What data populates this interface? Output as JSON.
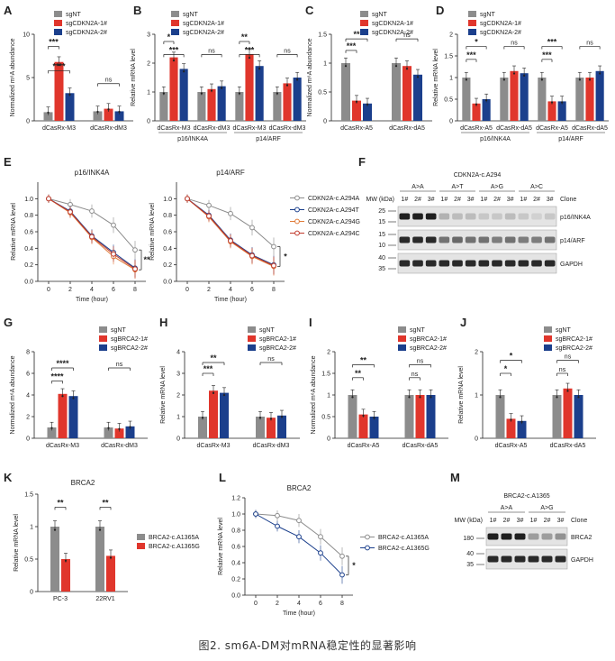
{
  "caption": "图2. sm6A-DM对mRNA稳定性的显著影响",
  "colors": {
    "sgNT": "#8c8c8c",
    "sg1": "#e0362c",
    "sg2": "#1b3f8c",
    "A": "#8c8c8c",
    "T": "#1b3f8c",
    "G": "#e07b39",
    "C": "#c0392b"
  },
  "legends": {
    "cdkn2a": [
      "sgNT",
      "sgCDKN2A-1#",
      "sgCDKN2A-2#"
    ],
    "brca2": [
      "sgNT",
      "sgBRCA2-1#",
      "sgBRCA2-2#"
    ],
    "cdkn2a_variants": [
      "CDKN2A-c.A294A",
      "CDKN2A-c.A294T",
      "CDKN2A-c.A294G",
      "CDKN2A-c.A294C"
    ],
    "brca2_variants_bar": [
      "BRCA2-c.A1365A",
      "BRCA2-c.A1365G"
    ],
    "brca2_variants_line": [
      "BRCA2-c.A1365A",
      "BRCA2-c.A1365G"
    ]
  },
  "chart_data": [
    {
      "panel": "A",
      "type": "bar",
      "title": "",
      "ylabel": "Normalized m⁶A abundance",
      "ylim": [
        0,
        10
      ],
      "yticks": [
        0,
        5,
        10
      ],
      "legend": "cdkn2a",
      "groups": [
        {
          "label": "dCasRx-M3",
          "values": [
            1,
            6.8,
            3.2
          ]
        },
        {
          "label": "dCasRx-dM3",
          "values": [
            1.1,
            1.4,
            1.1
          ]
        }
      ],
      "sig": [
        {
          "g": 0,
          "from": 0,
          "to": 1,
          "text": "***",
          "y": 8.6
        },
        {
          "g": 0,
          "from": 0,
          "to": 2,
          "text": "****",
          "y": 5.8
        },
        {
          "g": 1,
          "from": 0,
          "to": 2,
          "text": "ns",
          "y": 4.3
        }
      ]
    },
    {
      "panel": "B",
      "type": "bar",
      "title": "",
      "ylabel": "Relative mRNA level",
      "ylim": [
        0,
        3
      ],
      "yticks": [
        0,
        1,
        2,
        3
      ],
      "legend": "cdkn2a",
      "groups": [
        {
          "label": "dCasRx-M3",
          "values": [
            1,
            2.2,
            1.8
          ]
        },
        {
          "label": "dCasRx-dM3",
          "values": [
            1,
            1.1,
            1.2
          ]
        },
        {
          "label": "dCasRx-M3",
          "values": [
            1,
            2.3,
            1.9
          ]
        },
        {
          "label": "dCasRx-dM3",
          "values": [
            1,
            1.3,
            1.5
          ]
        }
      ],
      "sig": [
        {
          "g": 0,
          "from": 0,
          "to": 1,
          "text": "*",
          "y": 2.75
        },
        {
          "g": 0,
          "from": 0,
          "to": 2,
          "text": "***",
          "y": 2.3
        },
        {
          "g": 1,
          "from": 0,
          "to": 2,
          "text": "ns",
          "y": 2.3
        },
        {
          "g": 2,
          "from": 0,
          "to": 1,
          "text": "**",
          "y": 2.75
        },
        {
          "g": 2,
          "from": 0,
          "to": 2,
          "text": "***",
          "y": 2.3
        },
        {
          "g": 3,
          "from": 0,
          "to": 2,
          "text": "ns",
          "y": 2.3
        }
      ],
      "sublabels": [
        {
          "text": "p16/INK4A",
          "span": [
            0,
            1
          ]
        },
        {
          "text": "p14/ARF",
          "span": [
            2,
            3
          ]
        }
      ]
    },
    {
      "panel": "C",
      "type": "bar",
      "title": "",
      "ylabel": "Normalized m⁶A abundance",
      "ylim": [
        0,
        1.5
      ],
      "yticks": [
        0,
        0.5,
        1,
        1.5
      ],
      "legend": "cdkn2a",
      "groups": [
        {
          "label": "dCasRx-A5",
          "values": [
            1,
            0.35,
            0.3
          ]
        },
        {
          "label": "dCasRx-dA5",
          "values": [
            1,
            0.95,
            0.8
          ]
        }
      ],
      "sig": [
        {
          "g": 0,
          "from": 0,
          "to": 1,
          "text": "***",
          "y": 1.22
        },
        {
          "g": 0,
          "from": 0,
          "to": 2,
          "text": "**",
          "y": 1.42
        },
        {
          "g": 1,
          "from": 0,
          "to": 2,
          "text": "ns",
          "y": 1.42
        }
      ]
    },
    {
      "panel": "D",
      "type": "bar",
      "title": "",
      "ylabel": "Relative mRNA level",
      "ylim": [
        0,
        2
      ],
      "yticks": [
        0,
        0.5,
        1,
        1.5,
        2
      ],
      "legend": "cdkn2a",
      "groups": [
        {
          "label": "dCasRx-A5",
          "values": [
            1,
            0.4,
            0.5
          ]
        },
        {
          "label": "dCasRx-dA5",
          "values": [
            1,
            1.15,
            1.1
          ]
        },
        {
          "label": "dCasRx-A5",
          "values": [
            1,
            0.45,
            0.45
          ]
        },
        {
          "label": "dCasRx-dA5",
          "values": [
            1,
            1.0,
            1.15
          ]
        }
      ],
      "sig": [
        {
          "g": 0,
          "from": 0,
          "to": 1,
          "text": "***",
          "y": 1.42
        },
        {
          "g": 0,
          "from": 0,
          "to": 2,
          "text": "*",
          "y": 1.72
        },
        {
          "g": 1,
          "from": 0,
          "to": 2,
          "text": "ns",
          "y": 1.72
        },
        {
          "g": 2,
          "from": 0,
          "to": 1,
          "text": "***",
          "y": 1.42
        },
        {
          "g": 2,
          "from": 0,
          "to": 2,
          "text": "***",
          "y": 1.72
        },
        {
          "g": 3,
          "from": 0,
          "to": 2,
          "text": "ns",
          "y": 1.72
        }
      ],
      "sublabels": [
        {
          "text": "p16/INK4A",
          "span": [
            0,
            1
          ]
        },
        {
          "text": "p14/ARF",
          "span": [
            2,
            3
          ]
        }
      ]
    },
    {
      "panel": "E1",
      "type": "line",
      "title": "p16/INK4A",
      "xlabel": "Time (hour)",
      "ylabel": "Relative mRNA level",
      "x": [
        0,
        2,
        4,
        6,
        8
      ],
      "xlim": [
        -1,
        9
      ],
      "ylim": [
        0,
        1.2
      ],
      "yticks": [
        0,
        0.2,
        0.4,
        0.6,
        0.8,
        1.0
      ],
      "series": [
        {
          "name": "CDKN2A-c.A294A",
          "values": [
            1.0,
            0.93,
            0.85,
            0.68,
            0.38
          ]
        },
        {
          "name": "CDKN2A-c.A294T",
          "values": [
            1.0,
            0.85,
            0.55,
            0.35,
            0.16
          ]
        },
        {
          "name": "CDKN2A-c.A294G",
          "values": [
            1.0,
            0.83,
            0.53,
            0.3,
            0.14
          ]
        },
        {
          "name": "CDKN2A-c.A294C",
          "values": [
            1.0,
            0.84,
            0.54,
            0.33,
            0.15
          ]
        }
      ],
      "sig": "**"
    },
    {
      "panel": "E2",
      "type": "line",
      "title": "p14/ARF",
      "xlabel": "Time (hour)",
      "ylabel": "Relative mRNA level",
      "x": [
        0,
        2,
        4,
        6,
        8
      ],
      "xlim": [
        -1,
        9
      ],
      "ylim": [
        0,
        1.2
      ],
      "yticks": [
        0,
        0.2,
        0.4,
        0.6,
        0.8,
        1.0
      ],
      "series": [
        {
          "name": "CDKN2A-c.A294A",
          "values": [
            1.0,
            0.92,
            0.82,
            0.65,
            0.42
          ]
        },
        {
          "name": "CDKN2A-c.A294T",
          "values": [
            1.0,
            0.8,
            0.5,
            0.32,
            0.2
          ]
        },
        {
          "name": "CDKN2A-c.A294G",
          "values": [
            1.0,
            0.78,
            0.48,
            0.3,
            0.18
          ]
        },
        {
          "name": "CDKN2A-c.A294C",
          "values": [
            1.0,
            0.79,
            0.49,
            0.31,
            0.19
          ]
        }
      ],
      "sig": "*"
    },
    {
      "panel": "G",
      "type": "bar",
      "title": "",
      "ylabel": "Normalized m⁶A abundance",
      "ylim": [
        0,
        8
      ],
      "yticks": [
        0,
        2,
        4,
        6,
        8
      ],
      "legend": "brca2",
      "groups": [
        {
          "label": "dCasRx-M3",
          "values": [
            1,
            4.1,
            3.9
          ]
        },
        {
          "label": "dCasRx-dM3",
          "values": [
            1,
            0.9,
            1.1
          ]
        }
      ],
      "sig": [
        {
          "g": 0,
          "from": 0,
          "to": 1,
          "text": "****",
          "y": 5.3
        },
        {
          "g": 0,
          "from": 0,
          "to": 2,
          "text": "****",
          "y": 6.5
        },
        {
          "g": 1,
          "from": 0,
          "to": 2,
          "text": "ns",
          "y": 6.5
        }
      ]
    },
    {
      "panel": "H",
      "type": "bar",
      "title": "",
      "ylabel": "Relative mRNA level",
      "ylim": [
        0,
        4
      ],
      "yticks": [
        0,
        1,
        2,
        3,
        4
      ],
      "legend": "brca2",
      "groups": [
        {
          "label": "dCasRx-M3",
          "values": [
            1,
            2.2,
            2.1
          ]
        },
        {
          "label": "dCasRx-dM3",
          "values": [
            1,
            0.95,
            1.05
          ]
        }
      ],
      "sig": [
        {
          "g": 0,
          "from": 0,
          "to": 1,
          "text": "***",
          "y": 3.0
        },
        {
          "g": 0,
          "from": 0,
          "to": 2,
          "text": "**",
          "y": 3.5
        },
        {
          "g": 1,
          "from": 0,
          "to": 2,
          "text": "ns",
          "y": 3.5
        }
      ]
    },
    {
      "panel": "I",
      "type": "bar",
      "title": "",
      "ylabel": "Normalized m⁶A abundance",
      "ylim": [
        0,
        2
      ],
      "yticks": [
        0,
        0.5,
        1.0,
        1.5,
        2.0
      ],
      "legend": "brca2",
      "groups": [
        {
          "label": "dCasRx-A5",
          "values": [
            1,
            0.55,
            0.5
          ]
        },
        {
          "label": "dCasRx-dA5",
          "values": [
            1,
            1.0,
            1.0
          ]
        }
      ],
      "sig": [
        {
          "g": 0,
          "from": 0,
          "to": 1,
          "text": "**",
          "y": 1.4
        },
        {
          "g": 0,
          "from": 0,
          "to": 2,
          "text": "**",
          "y": 1.7
        },
        {
          "g": 1,
          "from": 0,
          "to": 1,
          "text": "ns",
          "y": 1.4
        },
        {
          "g": 1,
          "from": 0,
          "to": 2,
          "text": "ns",
          "y": 1.7
        }
      ]
    },
    {
      "panel": "J",
      "type": "bar",
      "title": "",
      "ylabel": "Relative mRNA level",
      "ylim": [
        0,
        2
      ],
      "yticks": [
        0,
        1,
        2
      ],
      "legend": "brca2",
      "groups": [
        {
          "label": "dCasRx-A5",
          "values": [
            1,
            0.45,
            0.4
          ]
        },
        {
          "label": "dCasRx-dA5",
          "values": [
            1,
            1.15,
            1.0
          ]
        }
      ],
      "sig": [
        {
          "g": 0,
          "from": 0,
          "to": 1,
          "text": "*",
          "y": 1.5
        },
        {
          "g": 0,
          "from": 0,
          "to": 2,
          "text": "*",
          "y": 1.8
        },
        {
          "g": 1,
          "from": 0,
          "to": 1,
          "text": "ns",
          "y": 1.5
        },
        {
          "g": 1,
          "from": 0,
          "to": 2,
          "text": "ns",
          "y": 1.8
        }
      ]
    },
    {
      "panel": "K",
      "type": "bar",
      "title": "BRCA2",
      "ylabel": "Relative mRNA level",
      "ylim": [
        0,
        1.5
      ],
      "yticks": [
        0,
        0.5,
        1.0,
        1.5
      ],
      "groups": [
        {
          "label": "PC-3",
          "values": [
            1.0,
            0.5
          ]
        },
        {
          "label": "22RV1",
          "values": [
            1.0,
            0.55
          ]
        }
      ],
      "series_names": [
        "BRCA2-c.A1365A",
        "BRCA2-c.A1365G"
      ],
      "sig": [
        {
          "g": 0,
          "from": 0,
          "to": 1,
          "text": "**",
          "y": 1.3
        },
        {
          "g": 1,
          "from": 0,
          "to": 1,
          "text": "**",
          "y": 1.3
        }
      ]
    },
    {
      "panel": "L",
      "type": "line",
      "title": "BRCA2",
      "xlabel": "Time (hour)",
      "ylabel": "Relative mRNA level",
      "x": [
        0,
        2,
        4,
        6,
        8
      ],
      "xlim": [
        -1,
        9
      ],
      "ylim": [
        0,
        1.2
      ],
      "yticks": [
        0,
        0.2,
        0.4,
        0.6,
        0.8,
        1.0,
        1.2
      ],
      "series": [
        {
          "name": "BRCA2-c.A1365A",
          "values": [
            1.0,
            0.98,
            0.92,
            0.72,
            0.48
          ]
        },
        {
          "name": "BRCA2-c.A1365G",
          "values": [
            1.0,
            0.85,
            0.72,
            0.52,
            0.25
          ]
        }
      ],
      "sig": "*"
    }
  ],
  "blots": {
    "F": {
      "title": "CDKN2A-c.A294",
      "mw_label": "MW (kDa)",
      "groups": [
        "A>A",
        "A>T",
        "A>G",
        "A>C"
      ],
      "lanes": [
        "1#",
        "2#",
        "3#",
        "1#",
        "2#",
        "3#",
        "1#",
        "2#",
        "3#",
        "1#",
        "2#",
        "3#"
      ],
      "clone_label": "Clone",
      "rows": [
        {
          "name": "p16/INK4A",
          "markers": [
            "25",
            "15"
          ],
          "intensity": [
            0.95,
            0.95,
            0.95,
            0.25,
            0.2,
            0.2,
            0.15,
            0.15,
            0.2,
            0.15,
            0.1,
            0.15
          ]
        },
        {
          "name": "p14/ARF",
          "markers": [
            "15",
            "10"
          ],
          "intensity": [
            0.9,
            0.9,
            0.9,
            0.55,
            0.6,
            0.55,
            0.55,
            0.5,
            0.55,
            0.5,
            0.5,
            0.55
          ]
        },
        {
          "name": "GAPDH",
          "markers": [
            "40",
            "35"
          ],
          "intensity": [
            0.9,
            0.9,
            0.9,
            0.9,
            0.9,
            0.9,
            0.9,
            0.9,
            0.9,
            0.9,
            0.9,
            0.9
          ]
        }
      ]
    },
    "M": {
      "title": "BRCA2-c.A1365",
      "mw_label": "MW (kDa)",
      "groups": [
        "A>A",
        "A>G"
      ],
      "lanes": [
        "1#",
        "2#",
        "3#",
        "1#",
        "2#",
        "3#"
      ],
      "clone_label": "Clone",
      "rows": [
        {
          "name": "BRCA2",
          "markers": [
            "180"
          ],
          "intensity": [
            0.95,
            0.95,
            0.95,
            0.35,
            0.35,
            0.4
          ]
        },
        {
          "name": "GAPDH",
          "markers": [
            "40",
            "35"
          ],
          "intensity": [
            0.9,
            0.9,
            0.9,
            0.9,
            0.9,
            0.9
          ]
        }
      ]
    }
  }
}
